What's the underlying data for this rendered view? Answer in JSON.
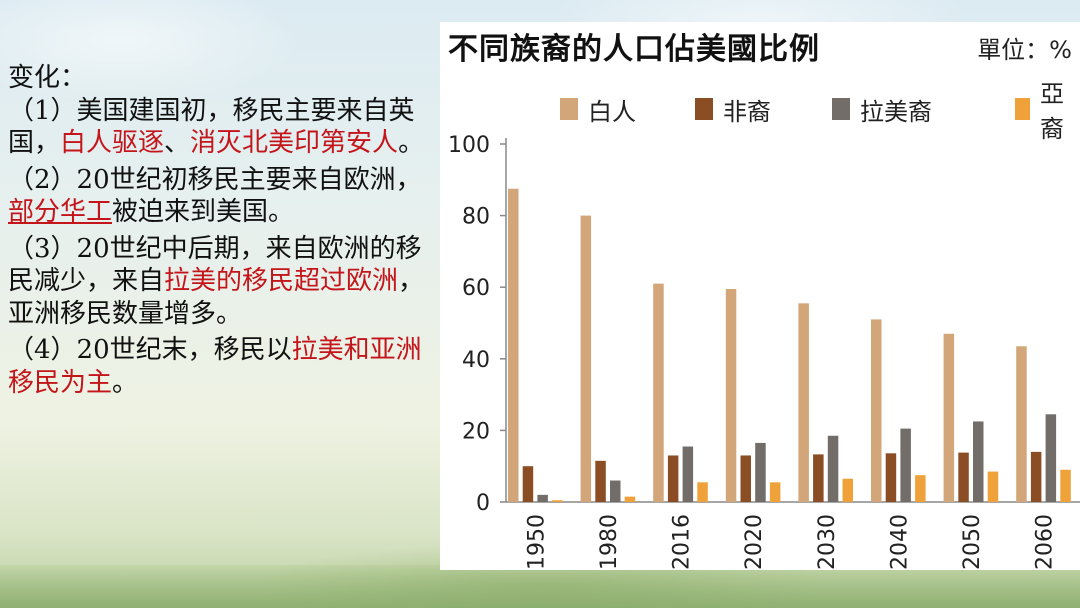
{
  "slide": {
    "heading": "变化：",
    "points": [
      {
        "marker": "（1）",
        "segments": [
          {
            "text": "美国建国初，移民主要来自英国，",
            "style": "normal"
          },
          {
            "text": "白人驱逐",
            "style": "red"
          },
          {
            "text": "、",
            "style": "normal"
          },
          {
            "text": "消灭北美印第安人",
            "style": "red"
          },
          {
            "text": "。",
            "style": "normal"
          }
        ]
      },
      {
        "marker": "（2）",
        "segments": [
          {
            "text": "20世纪初移民主要来自欧洲，",
            "style": "normal"
          },
          {
            "text": "部分华工",
            "style": "red-underline"
          },
          {
            "text": "被迫来到美国。",
            "style": "normal"
          }
        ]
      },
      {
        "marker": "（3）",
        "segments": [
          {
            "text": "20世纪中后期，来自欧洲的移民减少，来自",
            "style": "normal"
          },
          {
            "text": "拉美的移民超过欧洲",
            "style": "red"
          },
          {
            "text": "，亚洲移民数量增多。",
            "style": "normal"
          }
        ]
      },
      {
        "marker": "（4）",
        "segments": [
          {
            "text": "20世纪末，移民以",
            "style": "normal"
          },
          {
            "text": "拉美和亚洲移民为主",
            "style": "red"
          },
          {
            "text": "。",
            "style": "normal"
          }
        ]
      }
    ]
  },
  "chart_data": {
    "type": "bar",
    "title": "不同族裔的人口佔美國比例",
    "unit_label": "單位：%",
    "categories": [
      "1950",
      "1980",
      "2016",
      "2020",
      "2030",
      "2040",
      "2050",
      "2060"
    ],
    "series": [
      {
        "name": "白人",
        "color": "#d2a679",
        "values": [
          87.5,
          80,
          61,
          59.5,
          55.5,
          51,
          47,
          43.5
        ]
      },
      {
        "name": "非裔",
        "color": "#8b4e24",
        "values": [
          10,
          11.5,
          13,
          13,
          13.3,
          13.6,
          13.8,
          14
        ]
      },
      {
        "name": "拉美裔",
        "color": "#736d6a",
        "values": [
          2,
          6,
          15.5,
          16.5,
          18.5,
          20.5,
          22.5,
          24.5
        ]
      },
      {
        "name": "亞裔",
        "color": "#f0a23a",
        "values": [
          0.5,
          1.5,
          5.5,
          5.5,
          6.5,
          7.5,
          8.5,
          9
        ]
      }
    ],
    "yticks": [
      0,
      20,
      40,
      60,
      80,
      100
    ],
    "ylim": [
      0,
      100
    ],
    "grid": false,
    "legend": "top"
  }
}
